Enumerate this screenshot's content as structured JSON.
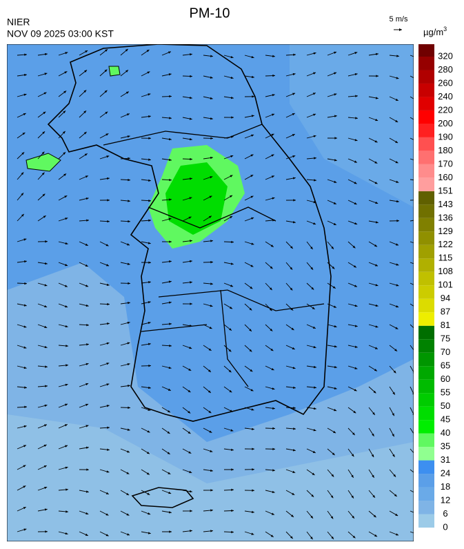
{
  "header": {
    "title": "PM-10",
    "agency": "NIER",
    "timestamp": "NOV 09 2025 03:00 KST",
    "wind_scale": "5 m/s"
  },
  "colorbar": {
    "unit": "µg/m",
    "unit_superscript": "3",
    "levels": [
      0,
      6,
      12,
      18,
      24,
      31,
      35,
      40,
      45,
      50,
      55,
      60,
      65,
      70,
      75,
      81,
      87,
      94,
      101,
      108,
      115,
      122,
      129,
      136,
      143,
      151,
      160,
      170,
      180,
      190,
      200,
      220,
      240,
      260,
      280,
      320
    ],
    "colors": [
      "#9ccbe8",
      "#7fb4e6",
      "#6aaae8",
      "#5b9fe8",
      "#3d8ff0",
      "#90ff90",
      "#60f860",
      "#00ee00",
      "#00dd00",
      "#00cc00",
      "#00bb00",
      "#00a800",
      "#009600",
      "#008200",
      "#006e00",
      "#eeee00",
      "#dcdc00",
      "#cccc00",
      "#c0c000",
      "#b0b000",
      "#a0a000",
      "#909000",
      "#808000",
      "#707000",
      "#606000",
      "#ff9e9e",
      "#ff8c8c",
      "#ff7070",
      "#ff5050",
      "#ff2020",
      "#ff0000",
      "#e00000",
      "#c80000",
      "#b00000",
      "#960000",
      "#700000"
    ]
  }
}
